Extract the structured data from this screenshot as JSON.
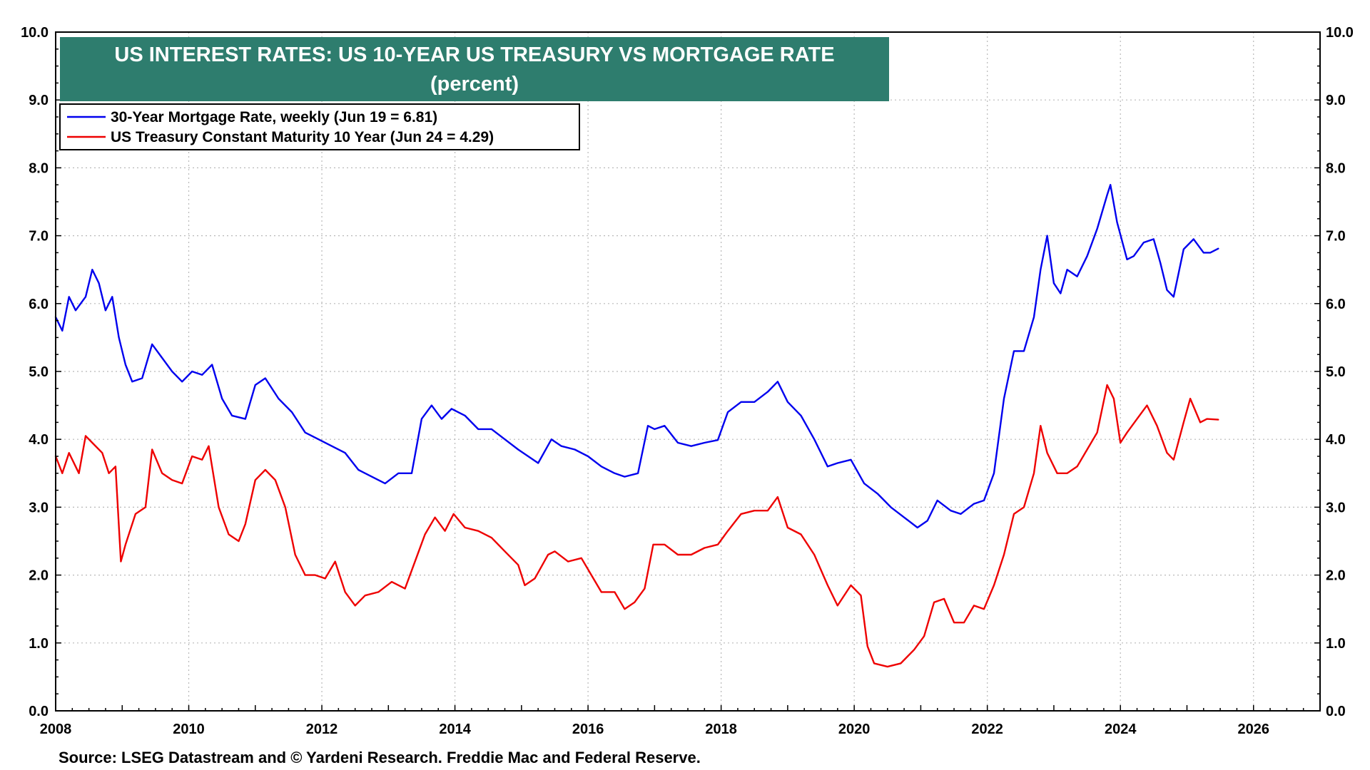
{
  "chart_data": {
    "type": "line",
    "title": "US INTEREST RATES: US 10-YEAR US TREASURY VS MORTGAGE RATE",
    "subtitle": "(percent)",
    "source": "Source: LSEG Datastream and © Yardeni Research. Freddie Mac and Federal Reserve.",
    "xlim": [
      2008,
      2027
    ],
    "ylim": [
      0,
      10
    ],
    "x_ticks": [
      "2008",
      "2010",
      "2012",
      "2014",
      "2016",
      "2018",
      "2020",
      "2022",
      "2024",
      "2026"
    ],
    "y_ticks": [
      "0.0",
      "1.0",
      "2.0",
      "3.0",
      "4.0",
      "5.0",
      "6.0",
      "7.0",
      "8.0",
      "9.0",
      "10.0"
    ],
    "grid": true,
    "legend_position": "top-left",
    "title_box_color": "#2e7d6e",
    "series": [
      {
        "name": "30-Year Mortgage Rate, weekly (Jun 19 = 6.81)",
        "color": "#0000ee",
        "x": [
          2008.0,
          2008.1,
          2008.2,
          2008.3,
          2008.45,
          2008.55,
          2008.65,
          2008.75,
          2008.85,
          2008.95,
          2009.05,
          2009.15,
          2009.3,
          2009.45,
          2009.6,
          2009.75,
          2009.9,
          2010.05,
          2010.2,
          2010.35,
          2010.5,
          2010.65,
          2010.85,
          2011.0,
          2011.15,
          2011.35,
          2011.55,
          2011.75,
          2011.95,
          2012.15,
          2012.35,
          2012.55,
          2012.75,
          2012.95,
          2013.15,
          2013.35,
          2013.5,
          2013.65,
          2013.8,
          2013.95,
          2014.15,
          2014.35,
          2014.55,
          2014.75,
          2014.95,
          2015.1,
          2015.25,
          2015.45,
          2015.6,
          2015.8,
          2016.0,
          2016.2,
          2016.4,
          2016.55,
          2016.75,
          2016.9,
          2017.0,
          2017.15,
          2017.35,
          2017.55,
          2017.75,
          2017.95,
          2018.1,
          2018.3,
          2018.5,
          2018.7,
          2018.85,
          2019.0,
          2019.2,
          2019.4,
          2019.6,
          2019.75,
          2019.95,
          2020.15,
          2020.35,
          2020.55,
          2020.75,
          2020.95,
          2021.1,
          2021.25,
          2021.45,
          2021.6,
          2021.8,
          2021.95,
          2022.1,
          2022.25,
          2022.4,
          2022.55,
          2022.7,
          2022.8,
          2022.9,
          2023.0,
          2023.1,
          2023.2,
          2023.35,
          2023.5,
          2023.65,
          2023.8,
          2023.85,
          2023.95,
          2024.1,
          2024.2,
          2024.35,
          2024.5,
          2024.6,
          2024.7,
          2024.8,
          2024.95,
          2025.1,
          2025.25,
          2025.35,
          2025.47
        ],
        "values": [
          5.8,
          5.6,
          6.1,
          5.9,
          6.1,
          6.5,
          6.3,
          5.9,
          6.1,
          5.5,
          5.1,
          4.85,
          4.9,
          5.4,
          5.2,
          5.0,
          4.85,
          5.0,
          4.95,
          5.1,
          4.6,
          4.35,
          4.3,
          4.8,
          4.9,
          4.6,
          4.4,
          4.1,
          4.0,
          3.9,
          3.8,
          3.55,
          3.45,
          3.35,
          3.5,
          3.5,
          4.3,
          4.5,
          4.3,
          4.45,
          4.35,
          4.15,
          4.15,
          4.0,
          3.85,
          3.75,
          3.65,
          4.0,
          3.9,
          3.85,
          3.75,
          3.6,
          3.5,
          3.45,
          3.5,
          4.2,
          4.15,
          4.2,
          3.95,
          3.9,
          3.95,
          3.99,
          4.4,
          4.55,
          4.55,
          4.7,
          4.85,
          4.55,
          4.35,
          4.0,
          3.6,
          3.65,
          3.7,
          3.35,
          3.2,
          3.0,
          2.85,
          2.7,
          2.8,
          3.1,
          2.95,
          2.9,
          3.05,
          3.1,
          3.5,
          4.6,
          5.3,
          5.3,
          5.8,
          6.5,
          7.0,
          6.3,
          6.15,
          6.5,
          6.4,
          6.7,
          7.1,
          7.6,
          7.75,
          7.2,
          6.65,
          6.7,
          6.9,
          6.95,
          6.6,
          6.2,
          6.1,
          6.8,
          6.95,
          6.75,
          6.75,
          6.81
        ]
      },
      {
        "name": "US Treasury Constant Maturity 10 Year (Jun 24 = 4.29)",
        "color": "#ee0000",
        "x": [
          2008.0,
          2008.1,
          2008.2,
          2008.35,
          2008.45,
          2008.55,
          2008.7,
          2008.8,
          2008.9,
          2008.98,
          2009.05,
          2009.2,
          2009.35,
          2009.45,
          2009.6,
          2009.75,
          2009.9,
          2010.05,
          2010.2,
          2010.3,
          2010.45,
          2010.6,
          2010.75,
          2010.85,
          2011.0,
          2011.15,
          2011.3,
          2011.45,
          2011.6,
          2011.75,
          2011.9,
          2012.05,
          2012.2,
          2012.35,
          2012.5,
          2012.65,
          2012.85,
          2013.05,
          2013.25,
          2013.4,
          2013.55,
          2013.7,
          2013.85,
          2013.98,
          2014.15,
          2014.35,
          2014.55,
          2014.75,
          2014.95,
          2015.05,
          2015.2,
          2015.4,
          2015.5,
          2015.7,
          2015.9,
          2016.05,
          2016.2,
          2016.4,
          2016.55,
          2016.7,
          2016.85,
          2016.98,
          2017.15,
          2017.35,
          2017.55,
          2017.75,
          2017.95,
          2018.1,
          2018.3,
          2018.5,
          2018.7,
          2018.85,
          2019.0,
          2019.2,
          2019.4,
          2019.6,
          2019.75,
          2019.95,
          2020.1,
          2020.2,
          2020.3,
          2020.5,
          2020.7,
          2020.9,
          2021.05,
          2021.2,
          2021.35,
          2021.5,
          2021.65,
          2021.8,
          2021.95,
          2022.1,
          2022.25,
          2022.4,
          2022.55,
          2022.7,
          2022.8,
          2022.9,
          2023.05,
          2023.2,
          2023.35,
          2023.5,
          2023.65,
          2023.8,
          2023.9,
          2024.0,
          2024.1,
          2024.25,
          2024.4,
          2024.55,
          2024.7,
          2024.8,
          2024.95,
          2025.05,
          2025.2,
          2025.3,
          2025.47
        ],
        "values": [
          3.75,
          3.5,
          3.8,
          3.5,
          4.05,
          3.95,
          3.8,
          3.5,
          3.6,
          2.2,
          2.45,
          2.9,
          3.0,
          3.85,
          3.5,
          3.4,
          3.35,
          3.75,
          3.7,
          3.9,
          3.0,
          2.6,
          2.5,
          2.75,
          3.4,
          3.55,
          3.4,
          3.0,
          2.3,
          2.0,
          2.0,
          1.95,
          2.2,
          1.75,
          1.55,
          1.7,
          1.75,
          1.9,
          1.8,
          2.2,
          2.6,
          2.85,
          2.65,
          2.9,
          2.7,
          2.65,
          2.55,
          2.35,
          2.15,
          1.85,
          1.95,
          2.3,
          2.35,
          2.2,
          2.25,
          2.0,
          1.75,
          1.75,
          1.5,
          1.6,
          1.8,
          2.45,
          2.45,
          2.3,
          2.3,
          2.4,
          2.45,
          2.65,
          2.9,
          2.95,
          2.95,
          3.15,
          2.7,
          2.6,
          2.3,
          1.85,
          1.55,
          1.85,
          1.7,
          0.95,
          0.7,
          0.65,
          0.7,
          0.9,
          1.1,
          1.6,
          1.65,
          1.3,
          1.3,
          1.55,
          1.5,
          1.85,
          2.3,
          2.9,
          3.0,
          3.5,
          4.2,
          3.8,
          3.5,
          3.5,
          3.6,
          3.85,
          4.1,
          4.8,
          4.6,
          3.95,
          4.1,
          4.3,
          4.5,
          4.2,
          3.8,
          3.7,
          4.25,
          4.6,
          4.25,
          4.3,
          4.29
        ]
      }
    ]
  }
}
